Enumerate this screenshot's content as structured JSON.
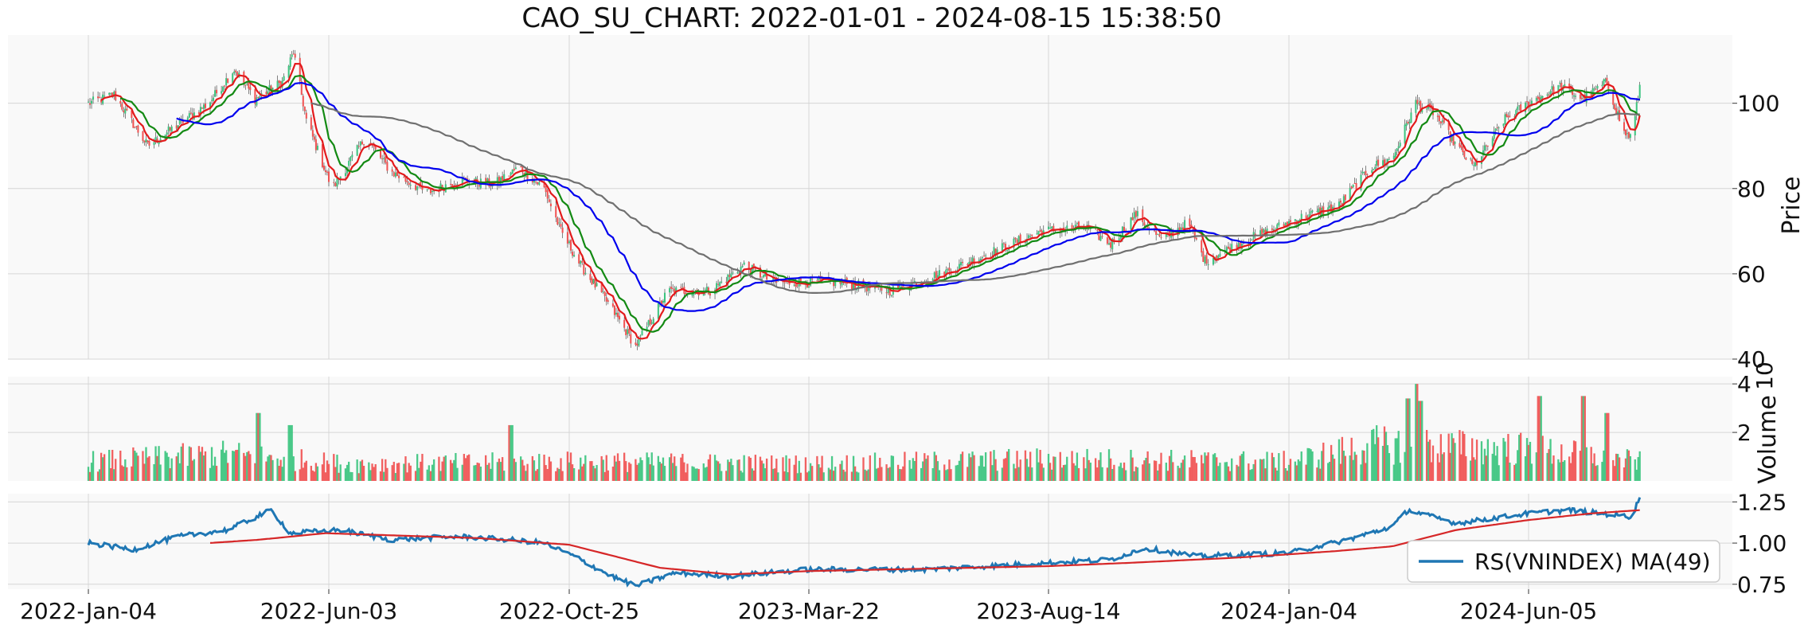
{
  "chart_data": {
    "type": "candlestick",
    "title": "CAO_SU_CHART: 2022-01-01 - 2024-08-15 15:38:50",
    "x_ticks": [
      "2022-Jan-04",
      "2022-Jun-03",
      "2022-Oct-25",
      "2023-Mar-22",
      "2023-Aug-14",
      "2024-Jan-04",
      "2024-Jun-05"
    ],
    "grid": true,
    "colors": {
      "up": "#3cc47f",
      "down": "#f05252",
      "ma_fast": "#e31a1c",
      "ma_mid": "#138a13",
      "ma_slow": "#0000ee",
      "ma_long": "#707070",
      "rs_line": "#1f77b4",
      "rs_ma": "#d62728",
      "panel_bg": "#f9f9f9",
      "grid": "#d6d6d6"
    },
    "price_panel": {
      "ylabel": "Price",
      "ylim": [
        40,
        116
      ],
      "yticks": [
        40,
        60,
        80,
        100
      ],
      "anchors": [
        [
          "2022-Jan-04",
          100
        ],
        [
          "2022-Jan-20",
          102
        ],
        [
          "2022-Feb-10",
          90
        ],
        [
          "2022-Mar-01",
          95
        ],
        [
          "2022-Mar-20",
          100
        ],
        [
          "2022-Apr-05",
          108
        ],
        [
          "2022-Apr-18",
          101
        ],
        [
          "2022-May-05",
          105
        ],
        [
          "2022-May-12",
          112
        ],
        [
          "2022-May-20",
          96
        ],
        [
          "2022-Jun-05",
          80
        ],
        [
          "2022-Jun-25",
          92
        ],
        [
          "2022-Jul-10",
          84
        ],
        [
          "2022-Aug-01",
          79
        ],
        [
          "2022-Aug-20",
          82
        ],
        [
          "2022-Sep-10",
          81
        ],
        [
          "2022-Sep-25",
          85
        ],
        [
          "2022-Oct-10",
          80
        ],
        [
          "2022-Oct-20",
          70
        ],
        [
          "2022-Nov-01",
          62
        ],
        [
          "2022-Nov-20",
          52
        ],
        [
          "2022-Dec-05",
          43
        ],
        [
          "2022-Dec-25",
          56
        ],
        [
          "2023-Jan-20",
          56
        ],
        [
          "2023-Feb-10",
          62
        ],
        [
          "2023-Feb-28",
          58
        ],
        [
          "2023-Mar-20",
          58
        ],
        [
          "2023-Apr-10",
          58
        ],
        [
          "2023-May-10",
          56
        ],
        [
          "2023-Jun-10",
          60
        ],
        [
          "2023-Jul-10",
          65
        ],
        [
          "2023-Aug-10",
          70
        ],
        [
          "2023-Sep-05",
          71
        ],
        [
          "2023-Sep-20",
          67
        ],
        [
          "2023-Oct-05",
          74
        ],
        [
          "2023-Oct-20",
          68
        ],
        [
          "2023-Nov-05",
          72
        ],
        [
          "2023-Nov-15",
          63
        ],
        [
          "2023-Dec-10",
          68
        ],
        [
          "2024-Jan-10",
          73
        ],
        [
          "2024-Feb-05",
          76
        ],
        [
          "2024-Feb-25",
          85
        ],
        [
          "2024-Mar-10",
          87
        ],
        [
          "2024-Mar-25",
          100
        ],
        [
          "2024-Apr-05",
          98
        ],
        [
          "2024-Apr-20",
          90
        ],
        [
          "2024-May-01",
          85
        ],
        [
          "2024-May-20",
          96
        ],
        [
          "2024-Jun-05",
          100
        ],
        [
          "2024-Jun-25",
          104
        ],
        [
          "2024-Jul-10",
          101
        ],
        [
          "2024-Jul-25",
          105
        ],
        [
          "2024-Aug-05",
          93
        ],
        [
          "2024-Aug-10",
          92
        ],
        [
          "2024-Aug-15",
          104
        ]
      ],
      "moving_averages": [
        {
          "window": 7,
          "color_key": "ma_fast"
        },
        {
          "window": 15,
          "color_key": "ma_mid"
        },
        {
          "window": 40,
          "color_key": "ma_slow"
        },
        {
          "window": 100,
          "color_key": "ma_long"
        }
      ]
    },
    "volume_panel": {
      "ylabel": "Volume",
      "scale_label": "10",
      "ylim": [
        0,
        4.3
      ],
      "yticks": [
        2,
        4
      ],
      "phases": [
        [
          "2022-Jan-04",
          0.8
        ],
        [
          "2022-Apr-01",
          1.1
        ],
        [
          "2022-Jun-15",
          0.7
        ],
        [
          "2022-Nov-01",
          0.8
        ],
        [
          "2023-Mar-22",
          0.7
        ],
        [
          "2023-Aug-14",
          0.9
        ],
        [
          "2024-Jan-04",
          0.8
        ],
        [
          "2024-Mar-01",
          1.5
        ],
        [
          "2024-Jun-05",
          1.3
        ],
        [
          "2024-Aug-15",
          0.8
        ]
      ],
      "spikes": [
        [
          "2022-Apr-20",
          2.8
        ],
        [
          "2022-May-10",
          2.3
        ],
        [
          "2022-Sep-20",
          2.3
        ],
        [
          "2024-Mar-20",
          3.4
        ],
        [
          "2024-Mar-25",
          4.0
        ],
        [
          "2024-Mar-28",
          3.3
        ],
        [
          "2024-Jun-12",
          3.5
        ],
        [
          "2024-Jul-10",
          3.5
        ],
        [
          "2024-Jul-25",
          2.8
        ]
      ]
    },
    "rs_panel": {
      "ylim": [
        0.72,
        1.3
      ],
      "yticks": [
        0.75,
        1.0,
        1.25
      ],
      "legend_label": "RS(VNINDEX) MA(49)",
      "legend_position": "lower-right",
      "anchors": [
        [
          "2022-Jan-04",
          1.0
        ],
        [
          "2022-Feb-01",
          0.96
        ],
        [
          "2022-Mar-01",
          1.04
        ],
        [
          "2022-Apr-01",
          1.08
        ],
        [
          "2022-Apr-28",
          1.2
        ],
        [
          "2022-May-10",
          1.06
        ],
        [
          "2022-Jun-10",
          1.08
        ],
        [
          "2022-Jul-10",
          1.02
        ],
        [
          "2022-Aug-20",
          1.04
        ],
        [
          "2022-Sep-20",
          1.02
        ],
        [
          "2022-Oct-10",
          1.0
        ],
        [
          "2022-Oct-28",
          0.92
        ],
        [
          "2022-Nov-20",
          0.8
        ],
        [
          "2022-Dec-05",
          0.74
        ],
        [
          "2022-Dec-30",
          0.82
        ],
        [
          "2023-Feb-01",
          0.8
        ],
        [
          "2023-Mar-22",
          0.84
        ],
        [
          "2023-Jun-01",
          0.84
        ],
        [
          "2023-Aug-14",
          0.88
        ],
        [
          "2023-Sep-20",
          0.9
        ],
        [
          "2023-Oct-10",
          0.97
        ],
        [
          "2023-Nov-10",
          0.92
        ],
        [
          "2024-Jan-04",
          0.94
        ],
        [
          "2024-Feb-10",
          1.02
        ],
        [
          "2024-Mar-10",
          1.1
        ],
        [
          "2024-Mar-20",
          1.2
        ],
        [
          "2024-Apr-20",
          1.12
        ],
        [
          "2024-Jun-05",
          1.18
        ],
        [
          "2024-Jul-01",
          1.2
        ],
        [
          "2024-Aug-10",
          1.16
        ],
        [
          "2024-Aug-15",
          1.28
        ]
      ],
      "ma_anchors": [
        [
          "2022-Mar-20",
          1.0
        ],
        [
          "2022-Apr-20",
          1.02
        ],
        [
          "2022-Jun-01",
          1.06
        ],
        [
          "2022-Sep-01",
          1.03
        ],
        [
          "2022-Oct-25",
          0.99
        ],
        [
          "2022-Dec-20",
          0.85
        ],
        [
          "2023-Feb-01",
          0.81
        ],
        [
          "2023-Mar-22",
          0.83
        ],
        [
          "2023-Aug-14",
          0.86
        ],
        [
          "2023-Oct-01",
          0.88
        ],
        [
          "2023-Dec-01",
          0.91
        ],
        [
          "2024-Feb-01",
          0.95
        ],
        [
          "2024-Mar-10",
          0.98
        ],
        [
          "2024-Apr-20",
          1.08
        ],
        [
          "2024-Jun-05",
          1.14
        ],
        [
          "2024-Jul-15",
          1.18
        ],
        [
          "2024-Aug-15",
          1.2
        ]
      ]
    }
  }
}
